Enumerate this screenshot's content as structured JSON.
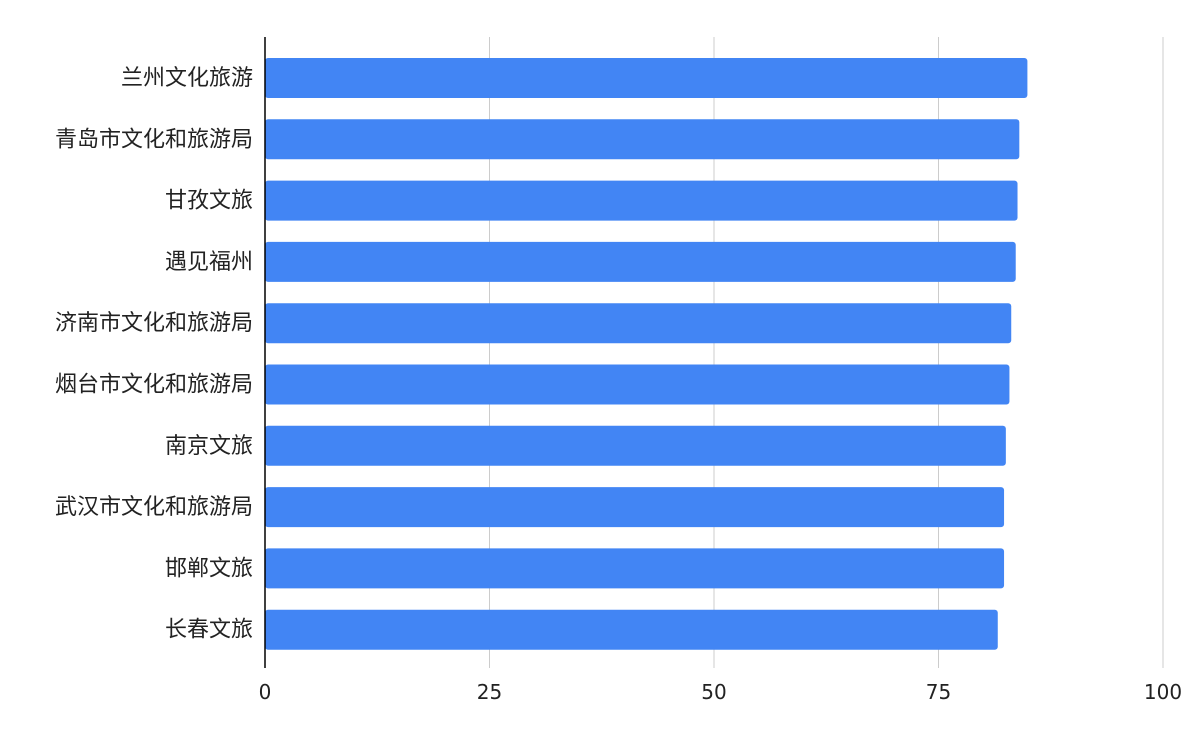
{
  "chart_data": {
    "type": "bar",
    "orientation": "horizontal",
    "title": "",
    "xlabel": "",
    "ylabel": "",
    "categories": [
      "兰州文化旅游",
      "青岛市文化和旅游局",
      "甘孜文旅",
      "遇见福州",
      "济南市文化和旅游局",
      "烟台市文化和旅游局",
      "南京文旅",
      "武汉市文化和旅游局",
      "邯郸文旅",
      "长春文旅"
    ],
    "values": [
      84.9,
      84.0,
      83.8,
      83.6,
      83.1,
      82.9,
      82.5,
      82.3,
      82.3,
      81.6
    ],
    "xlim": [
      0,
      100
    ],
    "xticks": [
      0,
      25,
      50,
      75,
      100
    ],
    "xtick_labels": [
      "0",
      "25",
      "50",
      "75",
      "100"
    ],
    "grid": true,
    "legend": "none",
    "colors": {
      "bar": "#4285f4",
      "grid": "#cccccc",
      "axis": "#000000",
      "text": "#222222"
    }
  }
}
